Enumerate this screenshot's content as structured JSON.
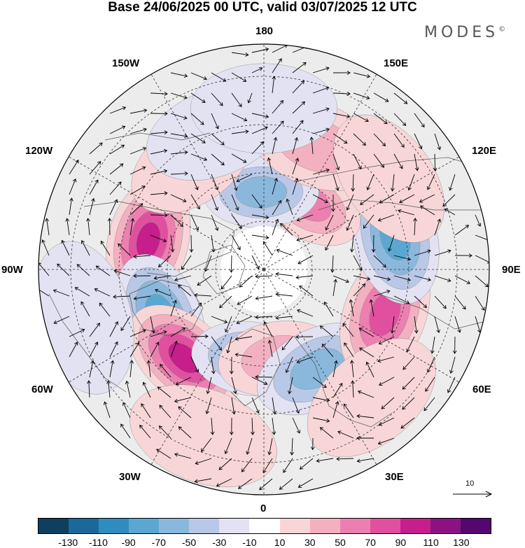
{
  "title": "Base 24/06/2025 00 UTC, valid 03/07/2025 12 UTC",
  "logo": {
    "text": "MODES",
    "mark": "©"
  },
  "longitude_labels": {
    "lon_180": "180",
    "lon_150e": "150E",
    "lon_120e": "120E",
    "lon_90e": "90E",
    "lon_60e": "60E",
    "lon_30e": "30E",
    "lon_0": "0",
    "lon_30w": "30W",
    "lon_60w": "60W",
    "lon_90w": "90W",
    "lon_120w": "120W",
    "lon_150w": "150W"
  },
  "reference_vector": {
    "value": "10"
  },
  "colorbar": {
    "colors": [
      "#0f3f5e",
      "#1a6a99",
      "#2f8cc0",
      "#5aa8d2",
      "#8ab8dc",
      "#b9c8e6",
      "#e2e2f2",
      "#ffffff",
      "#f8d6d8",
      "#f3b0c0",
      "#ec7fb0",
      "#e0509f",
      "#c61e8b",
      "#8c1282",
      "#54076e"
    ],
    "tick_labels": [
      "-130",
      "-110",
      "-90",
      "-70",
      "-50",
      "-30",
      "-10",
      "10",
      "30",
      "50",
      "70",
      "90",
      "110",
      "130"
    ]
  },
  "anomaly_centers": [
    {
      "lon": -104,
      "lat": 53,
      "value": 100
    },
    {
      "lon": -66,
      "lat": 55,
      "value": -80
    },
    {
      "lon": -42,
      "lat": 53,
      "value": 95
    },
    {
      "lon": -8,
      "lat": 62,
      "value": -55
    },
    {
      "lon": 9,
      "lat": 62,
      "value": 45
    },
    {
      "lon": 28,
      "lat": 55,
      "value": -65
    },
    {
      "lon": 70,
      "lat": 50,
      "value": 85
    },
    {
      "lon": 104,
      "lat": 48,
      "value": -85
    },
    {
      "lon": 147,
      "lat": 65,
      "value": 65
    },
    {
      "lon": -178,
      "lat": 66,
      "value": -55
    },
    {
      "lon": 158,
      "lat": 48,
      "value": 35
    },
    {
      "lon": -146,
      "lat": 50,
      "value": 25
    },
    {
      "lon": -160,
      "lat": 45,
      "value": -20
    },
    {
      "lon": 180,
      "lat": 40,
      "value": -20
    },
    {
      "lon": -20,
      "lat": 35,
      "value": 25
    },
    {
      "lon": -75,
      "lat": 32,
      "value": -20
    },
    {
      "lon": 40,
      "lat": 38,
      "value": 20
    },
    {
      "lon": 126,
      "lat": 42,
      "value": 25
    }
  ]
}
